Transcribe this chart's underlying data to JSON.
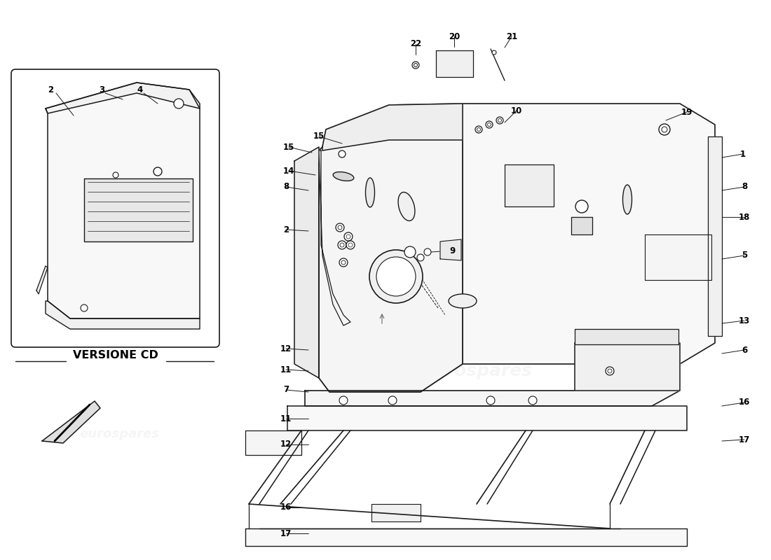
{
  "bg_color": "#ffffff",
  "lc": "#1a1a1a",
  "versione_cd": "VERSIONE CD",
  "watermark": "eurospares",
  "wm_color": "#cccccc",
  "label_fontsize": 8.5,
  "title_fontsize": 13
}
